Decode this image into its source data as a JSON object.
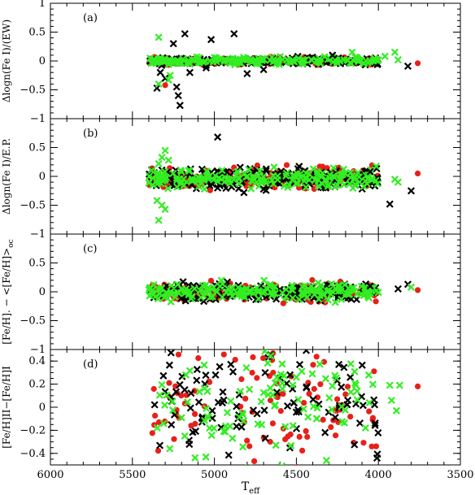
{
  "chart_data": {
    "type": "scatter",
    "x_label": "T",
    "x_label_sub": "eff",
    "xlim": [
      6000,
      3500
    ],
    "x_ticks": [
      "6000",
      "5500",
      "5000",
      "4500",
      "4000",
      "3500"
    ],
    "series_colors": {
      "red": "#e8201a",
      "black": "#000000",
      "green": "#33ee22"
    },
    "panels": [
      {
        "tag": "(a)",
        "ylabel": "Δlogn(Fe I)/(EW)",
        "ylim": [
          -1,
          1
        ],
        "y_ticks": [
          "1",
          "0.5",
          "0",
          "−0.5",
          "−1"
        ],
        "y_tick_values": [
          1,
          0.5,
          0,
          -0.5,
          -1
        ],
        "band": {
          "x_start": 5400,
          "x_end": 4000,
          "center": 0.0,
          "spread": 0.03,
          "density": 4
        },
        "outliers": [
          {
            "s": "black",
            "x": 5180,
            "y": 0.47
          },
          {
            "s": "black",
            "x": 4880,
            "y": 0.47
          },
          {
            "s": "black",
            "x": 5020,
            "y": 0.37
          },
          {
            "s": "black",
            "x": 5250,
            "y": 0.3
          },
          {
            "s": "green",
            "x": 5340,
            "y": 0.41
          },
          {
            "s": "green",
            "x": 4160,
            "y": 0.15
          },
          {
            "s": "green",
            "x": 3900,
            "y": 0.15
          },
          {
            "s": "green",
            "x": 3960,
            "y": 0.08
          },
          {
            "s": "green",
            "x": 3880,
            "y": 0.02
          },
          {
            "s": "red",
            "x": 3760,
            "y": -0.04
          },
          {
            "s": "black",
            "x": 3820,
            "y": -0.09
          },
          {
            "s": "black",
            "x": 4280,
            "y": 0.1
          },
          {
            "s": "black",
            "x": 5330,
            "y": -0.2
          },
          {
            "s": "black",
            "x": 5300,
            "y": -0.3
          },
          {
            "s": "black",
            "x": 5350,
            "y": -0.47
          },
          {
            "s": "black",
            "x": 5230,
            "y": -0.45
          },
          {
            "s": "black",
            "x": 5220,
            "y": -0.6
          },
          {
            "s": "black",
            "x": 5210,
            "y": -0.77
          },
          {
            "s": "green",
            "x": 5340,
            "y": -0.4
          },
          {
            "s": "green",
            "x": 5280,
            "y": -0.33
          },
          {
            "s": "red",
            "x": 5300,
            "y": -0.42
          },
          {
            "s": "green",
            "x": 5270,
            "y": -0.25
          },
          {
            "s": "black",
            "x": 5150,
            "y": -0.2
          },
          {
            "s": "black",
            "x": 4800,
            "y": -0.22
          },
          {
            "s": "black",
            "x": 4700,
            "y": -0.15
          },
          {
            "s": "black",
            "x": 5050,
            "y": -0.12
          }
        ]
      },
      {
        "tag": "(b)",
        "ylabel": "Δlogn(Fe I)/E.P.",
        "ylim": [
          -1,
          1
        ],
        "y_ticks": [
          "0.5",
          "0",
          "−0.5",
          "−1"
        ],
        "y_tick_values": [
          0.5,
          0,
          -0.5,
          -1
        ],
        "band": {
          "x_start": 5400,
          "x_end": 4000,
          "center": -0.03,
          "spread": 0.09,
          "density": 4
        },
        "outliers": [
          {
            "s": "black",
            "x": 4980,
            "y": 0.68
          },
          {
            "s": "green",
            "x": 5300,
            "y": 0.45
          },
          {
            "s": "green",
            "x": 5320,
            "y": 0.33
          },
          {
            "s": "green",
            "x": 5280,
            "y": 0.28
          },
          {
            "s": "green",
            "x": 5340,
            "y": 0.22
          },
          {
            "s": "green",
            "x": 5350,
            "y": -0.42
          },
          {
            "s": "green",
            "x": 5320,
            "y": -0.5
          },
          {
            "s": "green",
            "x": 5340,
            "y": -0.76
          },
          {
            "s": "green",
            "x": 5300,
            "y": -0.57
          },
          {
            "s": "black",
            "x": 4820,
            "y": -0.28
          },
          {
            "s": "black",
            "x": 4980,
            "y": -0.2
          },
          {
            "s": "black",
            "x": 4700,
            "y": -0.22
          },
          {
            "s": "green",
            "x": 3900,
            "y": -0.05
          },
          {
            "s": "green",
            "x": 3880,
            "y": -0.1
          },
          {
            "s": "black",
            "x": 3930,
            "y": -0.48
          },
          {
            "s": "black",
            "x": 3800,
            "y": -0.25
          },
          {
            "s": "red",
            "x": 3760,
            "y": 0.05
          },
          {
            "s": "black",
            "x": 4050,
            "y": 0.08
          }
        ]
      },
      {
        "tag": "(c)",
        "ylabel": "[Fe/H]. − <[Fe/H]>",
        "ylabel_sub": "oc",
        "ylim": [
          -1,
          1
        ],
        "y_ticks": [
          "0.5",
          "0",
          "−0.5",
          "−1"
        ],
        "y_tick_values": [
          0.5,
          0,
          -0.5,
          -1
        ],
        "band": {
          "x_start": 5400,
          "x_end": 4000,
          "center": 0.0,
          "spread": 0.07,
          "density": 4
        },
        "outliers": [
          {
            "s": "black",
            "x": 3820,
            "y": 0.13
          },
          {
            "s": "green",
            "x": 3800,
            "y": 0.08
          },
          {
            "s": "red",
            "x": 3760,
            "y": 0.03
          },
          {
            "s": "black",
            "x": 3880,
            "y": 0.05
          },
          {
            "s": "red",
            "x": 4580,
            "y": -0.2
          },
          {
            "s": "black",
            "x": 4050,
            "y": 0.1
          }
        ]
      },
      {
        "tag": "(d)",
        "ylabel": "[Fe/H]II−[Fe/H]I",
        "ylim": [
          -0.5,
          0.5
        ],
        "y_ticks": [
          "0.4",
          "0.2",
          "0",
          "−0.2",
          "−0.4"
        ],
        "y_tick_values": [
          0.4,
          0.2,
          0,
          -0.2,
          -0.4
        ],
        "band": {
          "x_start": 5380,
          "x_end": 4000,
          "center": 0.04,
          "spread": 0.25,
          "density": 2.2
        },
        "outliers": [
          {
            "s": "red",
            "x": 4040,
            "y": -0.34
          },
          {
            "s": "red",
            "x": 3760,
            "y": 0.18
          },
          {
            "s": "green",
            "x": 3870,
            "y": 0.19
          },
          {
            "s": "green",
            "x": 3930,
            "y": 0.19
          },
          {
            "s": "green",
            "x": 3920,
            "y": 0.06
          },
          {
            "s": "green",
            "x": 3890,
            "y": -0.03
          },
          {
            "s": "green",
            "x": 4500,
            "y": 0.26
          },
          {
            "s": "green",
            "x": 4890,
            "y": -0.27
          }
        ]
      }
    ]
  }
}
